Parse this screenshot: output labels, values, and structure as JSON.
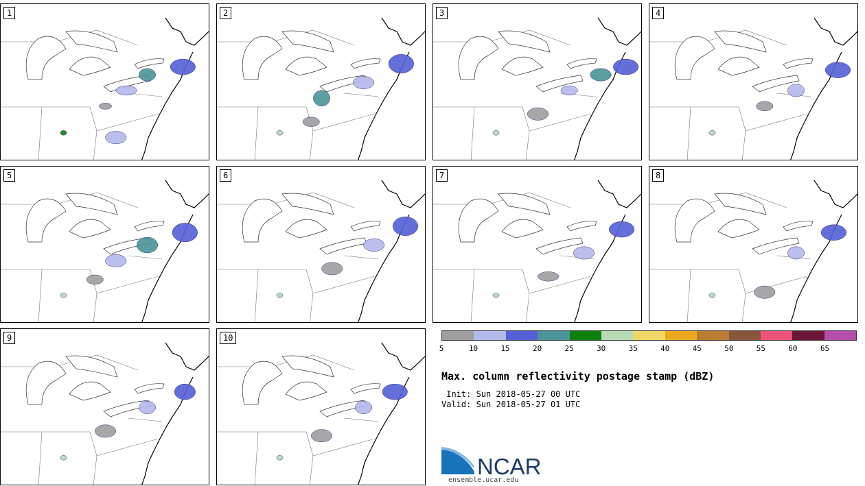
{
  "panels": [
    {
      "label": "1",
      "blobs": [
        [
          0.87,
          0.4,
          0.06,
          0.05,
          2
        ],
        [
          0.7,
          0.45,
          0.04,
          0.04,
          3
        ],
        [
          0.6,
          0.55,
          0.05,
          0.03,
          1
        ],
        [
          0.5,
          0.65,
          0.03,
          0.02,
          0
        ],
        [
          0.55,
          0.85,
          0.05,
          0.04,
          1
        ],
        [
          0.3,
          0.82,
          0.015,
          0.015,
          4
        ]
      ]
    },
    {
      "label": "2",
      "blobs": [
        [
          0.88,
          0.38,
          0.06,
          0.06,
          2
        ],
        [
          0.7,
          0.5,
          0.05,
          0.04,
          1
        ],
        [
          0.5,
          0.6,
          0.04,
          0.05,
          3
        ],
        [
          0.45,
          0.75,
          0.04,
          0.03,
          0
        ],
        [
          0.3,
          0.82,
          0.015,
          0.015,
          5
        ]
      ]
    },
    {
      "label": "3",
      "blobs": [
        [
          0.92,
          0.4,
          0.06,
          0.05,
          2
        ],
        [
          0.8,
          0.45,
          0.05,
          0.04,
          3
        ],
        [
          0.65,
          0.55,
          0.04,
          0.03,
          1
        ],
        [
          0.5,
          0.7,
          0.05,
          0.04,
          0
        ],
        [
          0.3,
          0.82,
          0.015,
          0.015,
          5
        ]
      ]
    },
    {
      "label": "4",
      "blobs": [
        [
          0.9,
          0.42,
          0.06,
          0.05,
          2
        ],
        [
          0.7,
          0.55,
          0.04,
          0.04,
          1
        ],
        [
          0.55,
          0.65,
          0.04,
          0.03,
          0
        ],
        [
          0.3,
          0.82,
          0.015,
          0.015,
          5
        ]
      ]
    },
    {
      "label": "5",
      "blobs": [
        [
          0.88,
          0.42,
          0.06,
          0.06,
          2
        ],
        [
          0.7,
          0.5,
          0.05,
          0.05,
          3
        ],
        [
          0.55,
          0.6,
          0.05,
          0.04,
          1
        ],
        [
          0.45,
          0.72,
          0.04,
          0.03,
          0
        ],
        [
          0.3,
          0.82,
          0.015,
          0.015,
          5
        ]
      ]
    },
    {
      "label": "6",
      "blobs": [
        [
          0.9,
          0.38,
          0.06,
          0.06,
          2
        ],
        [
          0.75,
          0.5,
          0.05,
          0.04,
          1
        ],
        [
          0.55,
          0.65,
          0.05,
          0.04,
          0
        ],
        [
          0.3,
          0.82,
          0.015,
          0.015,
          5
        ]
      ]
    },
    {
      "label": "7",
      "blobs": [
        [
          0.9,
          0.4,
          0.06,
          0.05,
          2
        ],
        [
          0.72,
          0.55,
          0.05,
          0.04,
          1
        ],
        [
          0.55,
          0.7,
          0.05,
          0.03,
          0
        ],
        [
          0.3,
          0.82,
          0.015,
          0.015,
          5
        ]
      ]
    },
    {
      "label": "8",
      "blobs": [
        [
          0.88,
          0.42,
          0.06,
          0.05,
          2
        ],
        [
          0.7,
          0.55,
          0.04,
          0.04,
          1
        ],
        [
          0.55,
          0.8,
          0.05,
          0.04,
          0
        ],
        [
          0.3,
          0.82,
          0.015,
          0.015,
          5
        ]
      ]
    },
    {
      "label": "9",
      "blobs": [
        [
          0.88,
          0.4,
          0.05,
          0.05,
          2
        ],
        [
          0.7,
          0.5,
          0.04,
          0.04,
          1
        ],
        [
          0.5,
          0.65,
          0.05,
          0.04,
          0
        ],
        [
          0.3,
          0.82,
          0.015,
          0.015,
          5
        ]
      ]
    },
    {
      "label": "10",
      "blobs": [
        [
          0.85,
          0.4,
          0.06,
          0.05,
          2
        ],
        [
          0.7,
          0.5,
          0.04,
          0.04,
          1
        ],
        [
          0.5,
          0.68,
          0.05,
          0.04,
          0
        ],
        [
          0.3,
          0.82,
          0.015,
          0.015,
          5
        ]
      ]
    }
  ],
  "colorbar": {
    "colors": [
      "#9e9ea0",
      "#b3b9eb",
      "#5560d5",
      "#4b9599",
      "#0e800e",
      "#b5dab5",
      "#efd666",
      "#eca920",
      "#b97d33",
      "#8a5638",
      "#ec5379",
      "#6c1739",
      "#b54dac"
    ],
    "tick_labels": [
      "5",
      "10",
      "15",
      "20",
      "25",
      "30",
      "35",
      "40",
      "45",
      "50",
      "55",
      "60",
      "65"
    ]
  },
  "title": "Max. column reflectivity postage stamp (dBZ)",
  "init": " Init: Sun 2018-05-27 00 UTC",
  "valid": "Valid: Sun 2018-05-27 01 UTC",
  "logo_text": "NCAR",
  "url": "ensemble.ucar.edu"
}
